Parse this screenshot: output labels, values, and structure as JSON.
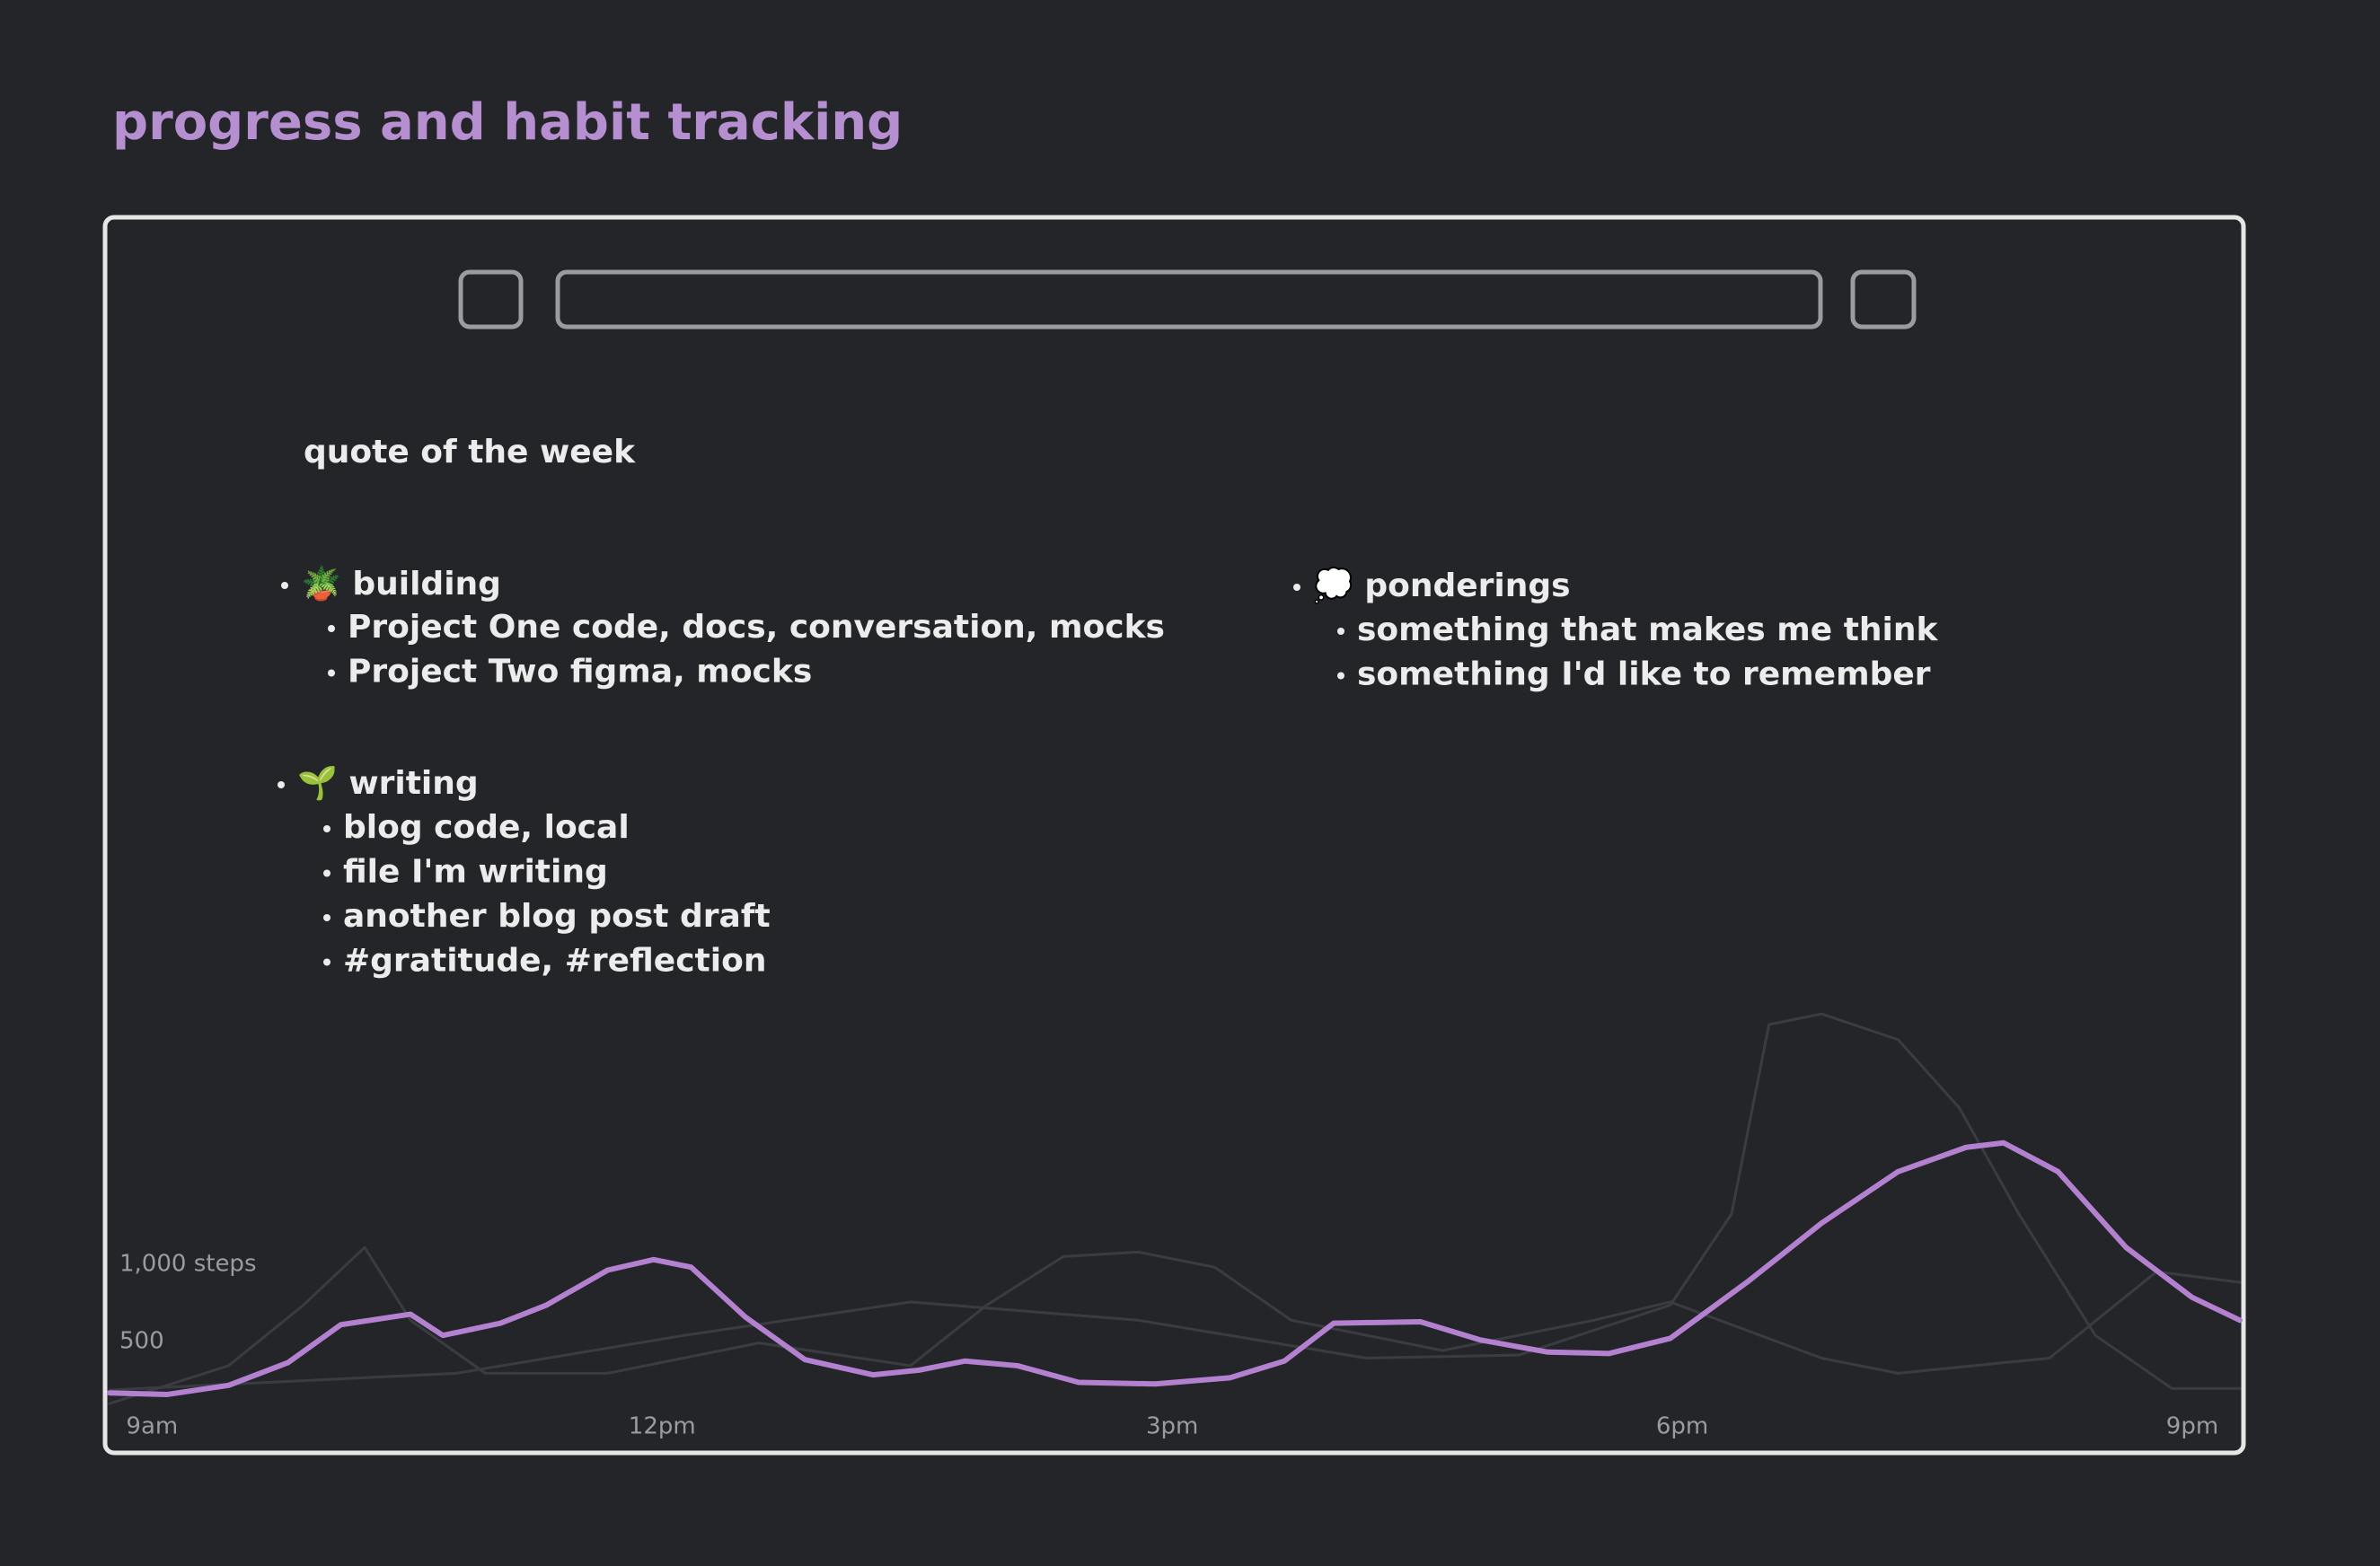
{
  "header": {
    "title": "progress and habit tracking"
  },
  "quote": {
    "label": "quote of the week"
  },
  "lists": [
    {
      "title": "🪴 building",
      "items": [
        "Project One code, docs, conversation, mocks",
        "Project Two figma, mocks"
      ]
    },
    {
      "title": "🌱 writing",
      "items": [
        "blog code, local",
        "file I'm writing",
        "another blog post draft",
        "#gratitude, #reflection"
      ]
    },
    {
      "title": "💭 ponderings",
      "items": [
        "something that makes me think",
        "something I'd like to remember"
      ]
    }
  ],
  "chart_data": {
    "type": "line",
    "xlim": [
      8.75,
      21.28
    ],
    "xticks": [
      {
        "value": 9,
        "label": "9am"
      },
      {
        "value": 12,
        "label": "12pm"
      },
      {
        "value": 15,
        "label": "3pm"
      },
      {
        "value": 18,
        "label": "6pm"
      },
      {
        "value": 21,
        "label": "9pm"
      }
    ],
    "ylim": [
      0,
      2700
    ],
    "yticks": [
      {
        "value": 500,
        "label": "500"
      },
      {
        "value": 1000,
        "label": "1,000 steps"
      }
    ],
    "series": [
      {
        "color": "#3a3c42",
        "x": [
          8.75,
          10.79,
          12.13,
          13.46,
          14.8,
          16.14,
          17.04,
          17.93,
          18.29,
          18.51,
          18.82,
          19.27,
          19.63,
          19.98,
          20.43,
          20.88,
          21.28
        ],
        "values": [
          186,
          294,
          539,
          755,
          637,
          392,
          412,
          735,
          1324,
          2549,
          2618,
          2451,
          2010,
          1324,
          539,
          196,
          196
        ]
      },
      {
        "color": "#3a3c42",
        "x": [
          8.75,
          9.45,
          9.89,
          10.25,
          10.52,
          10.96,
          11.68,
          12.57,
          13.46,
          13.91,
          14.36,
          14.8,
          15.25,
          15.7,
          16.59,
          17.48,
          17.93,
          18.82,
          19.27,
          20.16,
          20.79,
          21.28
        ],
        "values": [
          98,
          343,
          735,
          1108,
          637,
          294,
          294,
          490,
          343,
          735,
          1049,
          1078,
          980,
          637,
          441,
          637,
          755,
          392,
          294,
          392,
          951,
          882
        ]
      },
      {
        "color": "#b381cf",
        "x": [
          8.75,
          9.09,
          9.45,
          9.8,
          10.11,
          10.52,
          10.71,
          11.05,
          11.32,
          11.68,
          11.95,
          12.17,
          12.49,
          12.84,
          13.24,
          13.51,
          13.78,
          14.09,
          14.45,
          14.9,
          15.34,
          15.66,
          15.95,
          16.46,
          16.81,
          17.21,
          17.57,
          17.93,
          18.38,
          18.82,
          19.27,
          19.67,
          19.89,
          20.21,
          20.61,
          21.0,
          21.28
        ],
        "values": [
          167,
          157,
          216,
          363,
          608,
          676,
          539,
          618,
          735,
          961,
          1029,
          980,
          657,
          382,
          284,
          314,
          373,
          343,
          235,
          225,
          265,
          373,
          618,
          627,
          510,
          431,
          422,
          520,
          882,
          1265,
          1598,
          1755,
          1784,
          1598,
          1108,
          784,
          637
        ]
      }
    ]
  }
}
